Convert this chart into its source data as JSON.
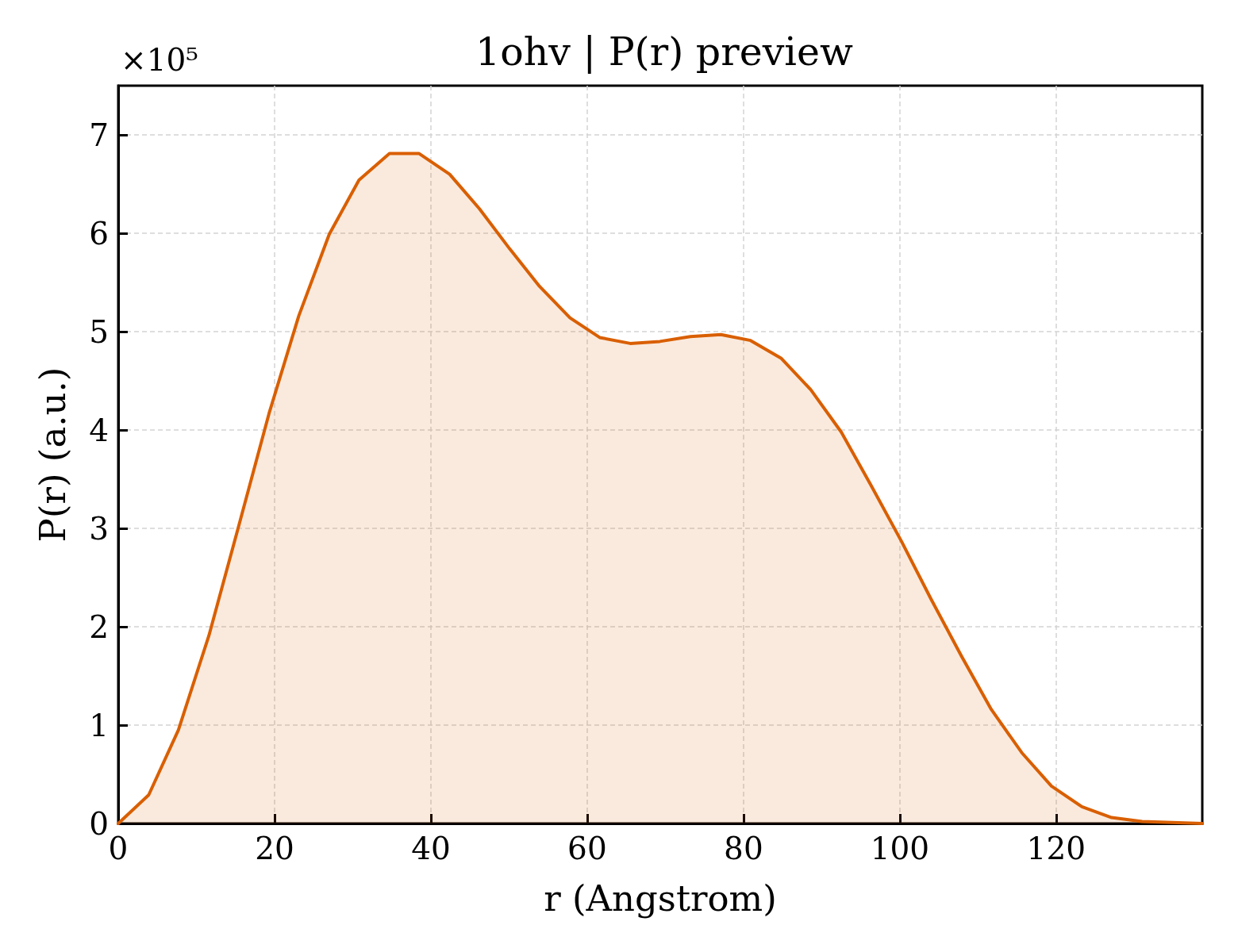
{
  "chart_data": {
    "type": "area",
    "title": "1ohv | P(r) preview",
    "xlabel": "r (Angstrom)",
    "ylabel": "P(r) (a.u.)",
    "annotations": [
      "×10⁵"
    ],
    "x": [
      0,
      3.9,
      7.7,
      11.6,
      15.4,
      19.3,
      23.1,
      27.0,
      30.8,
      34.7,
      38.5,
      42.4,
      46.2,
      50.1,
      53.9,
      57.8,
      61.6,
      65.5,
      69.3,
      73.2,
      77.1,
      80.9,
      84.8,
      88.6,
      92.5,
      96.3,
      100.2,
      104.0,
      107.9,
      111.7,
      115.6,
      119.4,
      123.3,
      127.1,
      131.0,
      134.8,
      138.7
    ],
    "values": [
      0,
      0.29,
      0.95,
      1.91,
      3.02,
      4.17,
      5.16,
      5.99,
      6.54,
      6.81,
      6.81,
      6.6,
      6.25,
      5.84,
      5.46,
      5.14,
      4.94,
      4.88,
      4.9,
      4.95,
      4.97,
      4.91,
      4.73,
      4.41,
      3.98,
      3.44,
      2.87,
      2.28,
      1.7,
      1.16,
      0.72,
      0.38,
      0.17,
      0.06,
      0.02,
      0.01,
      0
    ],
    "color": "#d95f02",
    "xlim": [
      0,
      138.7
    ],
    "xticks": [
      0,
      20,
      40,
      60,
      80,
      100,
      120
    ],
    "ylim": [
      0,
      7.5
    ],
    "yticks": [
      0,
      1,
      2,
      3,
      4,
      5,
      6,
      7
    ],
    "grid": true,
    "marker": "none",
    "line_style": "solid"
  }
}
